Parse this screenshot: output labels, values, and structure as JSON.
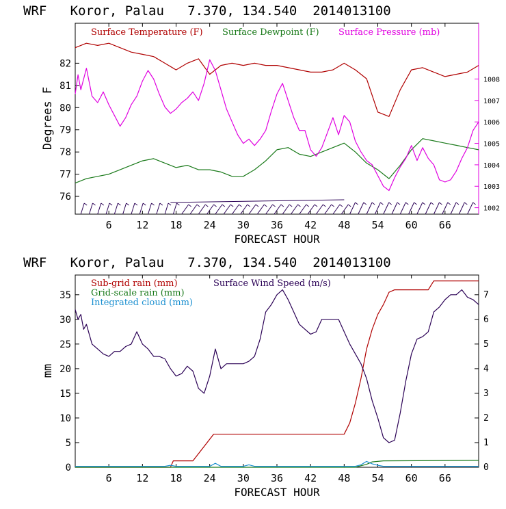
{
  "chart_data": [
    {
      "type": "line",
      "title": "WRF   Koror, Palau   7.370, 134.540  2014013100",
      "xlabel": "FORECAST HOUR",
      "ylabel": "Degrees F",
      "xlim": [
        0,
        72
      ],
      "ylim": [
        75.2,
        83.8
      ],
      "y2lim": [
        1001.7,
        1010.6
      ],
      "xticks": [
        6,
        12,
        18,
        24,
        30,
        36,
        42,
        48,
        54,
        60,
        66
      ],
      "xtick_labels": [
        "6",
        "12",
        "18",
        "24",
        "30",
        "36",
        "42",
        "48",
        "54",
        "60",
        "66"
      ],
      "yticks": [
        76,
        77,
        78,
        79,
        80,
        81,
        82
      ],
      "ytick_labels": [
        "76",
        "77",
        "78",
        "79",
        "80",
        "81",
        "82"
      ],
      "y2ticks": [
        1002,
        1003,
        1004,
        1005,
        1006,
        1007,
        1008
      ],
      "y2tick_labels": [
        "1002",
        "1003",
        "1004",
        "1005",
        "1006",
        "1007",
        "1008"
      ],
      "series": [
        {
          "name": "Surface Temperature (F)",
          "axis": "left",
          "color": "#b00000",
          "x": [
            0,
            2,
            4,
            6,
            8,
            10,
            12,
            14,
            16,
            18,
            20,
            22,
            24,
            26,
            28,
            30,
            32,
            34,
            36,
            38,
            40,
            42,
            44,
            46,
            48,
            50,
            52,
            54,
            56,
            58,
            60,
            62,
            64,
            66,
            68,
            70,
            72
          ],
          "y": [
            82.7,
            82.9,
            82.8,
            82.9,
            82.7,
            82.5,
            82.4,
            82.3,
            82.0,
            81.7,
            82.0,
            82.2,
            81.5,
            81.9,
            82.0,
            81.9,
            82.0,
            81.9,
            81.9,
            81.8,
            81.7,
            81.6,
            81.6,
            81.7,
            82.0,
            81.7,
            81.3,
            79.8,
            79.6,
            80.8,
            81.7,
            81.8,
            81.6,
            81.4,
            81.5,
            81.6,
            81.9
          ]
        },
        {
          "name": "Surface Dewpoint (F)",
          "axis": "left",
          "color": "#1a7a1a",
          "x": [
            0,
            2,
            4,
            6,
            8,
            10,
            12,
            14,
            16,
            18,
            20,
            22,
            24,
            26,
            28,
            30,
            32,
            34,
            36,
            38,
            40,
            42,
            44,
            46,
            48,
            50,
            52,
            54,
            56,
            58,
            60,
            62,
            64,
            66,
            68,
            70,
            72
          ],
          "y": [
            76.6,
            76.8,
            76.9,
            77.0,
            77.2,
            77.4,
            77.6,
            77.7,
            77.5,
            77.3,
            77.4,
            77.2,
            77.2,
            77.1,
            76.9,
            76.9,
            77.2,
            77.6,
            78.1,
            78.2,
            77.9,
            77.8,
            78.0,
            78.2,
            78.4,
            78.0,
            77.5,
            77.2,
            76.8,
            77.4,
            78.1,
            78.6,
            78.5,
            78.4,
            78.3,
            78.2,
            78.1
          ]
        },
        {
          "name": "Surface Pressure (mb)",
          "axis": "right",
          "color": "#e000e0",
          "x": [
            0,
            0.5,
            1,
            2,
            3,
            4,
            5,
            6,
            7,
            8,
            9,
            10,
            11,
            12,
            13,
            14,
            15,
            16,
            17,
            18,
            19,
            20,
            21,
            22,
            23,
            24,
            25,
            26,
            27,
            28,
            29,
            30,
            31,
            32,
            33,
            34,
            35,
            36,
            37,
            38,
            39,
            40,
            41,
            42,
            43,
            44,
            45,
            46,
            47,
            48,
            49,
            50,
            51,
            52,
            53,
            54,
            55,
            56,
            57,
            58,
            59,
            60,
            61,
            62,
            63,
            64,
            65,
            66,
            67,
            68,
            69,
            70,
            71,
            72
          ],
          "y": [
            1007.3,
            1008.2,
            1007.5,
            1008.5,
            1007.2,
            1006.9,
            1007.4,
            1006.8,
            1006.3,
            1005.8,
            1006.2,
            1006.8,
            1007.2,
            1007.9,
            1008.4,
            1008.0,
            1007.3,
            1006.7,
            1006.4,
            1006.6,
            1006.9,
            1007.1,
            1007.4,
            1007.0,
            1007.8,
            1008.9,
            1008.4,
            1007.5,
            1006.6,
            1006.0,
            1005.4,
            1005.0,
            1005.2,
            1004.9,
            1005.2,
            1005.6,
            1006.5,
            1007.3,
            1007.8,
            1007.0,
            1006.2,
            1005.6,
            1005.6,
            1004.7,
            1004.4,
            1004.8,
            1005.5,
            1006.2,
            1005.4,
            1006.3,
            1006.0,
            1005.1,
            1004.6,
            1004.2,
            1004.0,
            1003.5,
            1003.0,
            1002.8,
            1003.4,
            1003.9,
            1004.3,
            1004.9,
            1004.2,
            1004.8,
            1004.3,
            1004.0,
            1003.3,
            1003.2,
            1003.3,
            1003.7,
            1004.3,
            1004.8,
            1005.6,
            1006.0
          ]
        }
      ],
      "wind_barbs": "Row of wind barbs along the bottom of the temperature panel"
    },
    {
      "type": "line",
      "title": "WRF   Koror, Palau   7.370, 134.540  2014013100",
      "xlabel": "FORECAST HOUR",
      "ylabel": "mm",
      "xlim": [
        0,
        72
      ],
      "ylim": [
        0,
        39
      ],
      "y2lim": [
        0,
        7.8
      ],
      "xticks": [
        6,
        12,
        18,
        24,
        30,
        36,
        42,
        48,
        54,
        60,
        66
      ],
      "xtick_labels": [
        "6",
        "12",
        "18",
        "24",
        "30",
        "36",
        "42",
        "48",
        "54",
        "60",
        "66"
      ],
      "yticks": [
        0,
        5,
        10,
        15,
        20,
        25,
        30,
        35
      ],
      "ytick_labels": [
        "0",
        "5",
        "10",
        "15",
        "20",
        "25",
        "30",
        "35"
      ],
      "y2ticks": [
        0,
        1,
        2,
        3,
        4,
        5,
        6,
        7
      ],
      "y2tick_labels": [
        "0",
        "1",
        "2",
        "3",
        "4",
        "5",
        "6",
        "7"
      ],
      "series": [
        {
          "name": "Sub-grid rain (mm)",
          "axis": "left",
          "color": "#b00000",
          "x": [
            0,
            17,
            17.5,
            21,
            24.7,
            48,
            49,
            50,
            51,
            52,
            53,
            54,
            55,
            56,
            57,
            63,
            64,
            72
          ],
          "y": [
            0,
            0,
            1.3,
            1.3,
            6.7,
            6.7,
            9,
            13,
            18,
            24,
            28,
            31,
            33,
            35.5,
            36,
            36,
            37.8,
            37.8
          ]
        },
        {
          "name": "Grid-scale rain (mm)",
          "axis": "left",
          "color": "#1a7a1a",
          "x": [
            0,
            50,
            51,
            52,
            53,
            55,
            72
          ],
          "y": [
            0,
            0,
            0.3,
            0.6,
            1.1,
            1.3,
            1.4
          ]
        },
        {
          "name": "Integrated cloud (mm)",
          "axis": "left",
          "color": "#1a8fd0",
          "x": [
            0,
            16,
            17,
            18,
            24,
            25,
            26,
            30,
            31,
            32,
            50,
            51,
            52,
            53,
            54,
            55,
            57,
            72
          ],
          "y": [
            0.2,
            0.2,
            0.4,
            0.2,
            0.2,
            0.8,
            0.2,
            0.2,
            0.5,
            0.2,
            0.2,
            0.5,
            1.2,
            0.7,
            0.4,
            0.2,
            0.2,
            0.2
          ]
        },
        {
          "name": "Surface Wind Speed (m/s)",
          "axis": "right",
          "color": "#2a0055",
          "x": [
            0,
            0.5,
            1,
            1.5,
            2,
            3,
            4,
            5,
            6,
            7,
            8,
            9,
            10,
            11,
            12,
            13,
            14,
            15,
            16,
            17,
            18,
            19,
            20,
            21,
            22,
            23,
            24,
            25,
            26,
            27,
            28,
            29,
            30,
            31,
            32,
            33,
            34,
            35,
            36,
            37,
            38,
            39,
            40,
            41,
            42,
            43,
            44,
            45,
            46,
            47,
            48,
            49,
            50,
            51,
            52,
            53,
            54,
            55,
            56,
            57,
            58,
            59,
            60,
            61,
            62,
            63,
            64,
            65,
            66,
            67,
            68,
            69,
            70,
            71,
            72
          ],
          "y": [
            6.4,
            6.0,
            6.2,
            5.6,
            5.8,
            5.0,
            4.8,
            4.6,
            4.5,
            4.7,
            4.7,
            4.9,
            5.0,
            5.5,
            5.0,
            4.8,
            4.5,
            4.5,
            4.4,
            4.0,
            3.7,
            3.8,
            4.1,
            3.9,
            3.2,
            3.0,
            3.7,
            4.8,
            4.0,
            4.2,
            4.2,
            4.2,
            4.2,
            4.3,
            4.5,
            5.2,
            6.3,
            6.6,
            7.0,
            7.2,
            6.8,
            6.3,
            5.8,
            5.6,
            5.4,
            5.5,
            6.0,
            6.0,
            6.0,
            6.0,
            5.5,
            5.0,
            4.6,
            4.2,
            3.6,
            2.7,
            2.0,
            1.2,
            1.0,
            1.1,
            2.2,
            3.5,
            4.6,
            5.2,
            5.3,
            5.5,
            6.3,
            6.5,
            6.8,
            7.0,
            7.0,
            7.2,
            6.9,
            6.8,
            6.6
          ]
        }
      ]
    }
  ]
}
